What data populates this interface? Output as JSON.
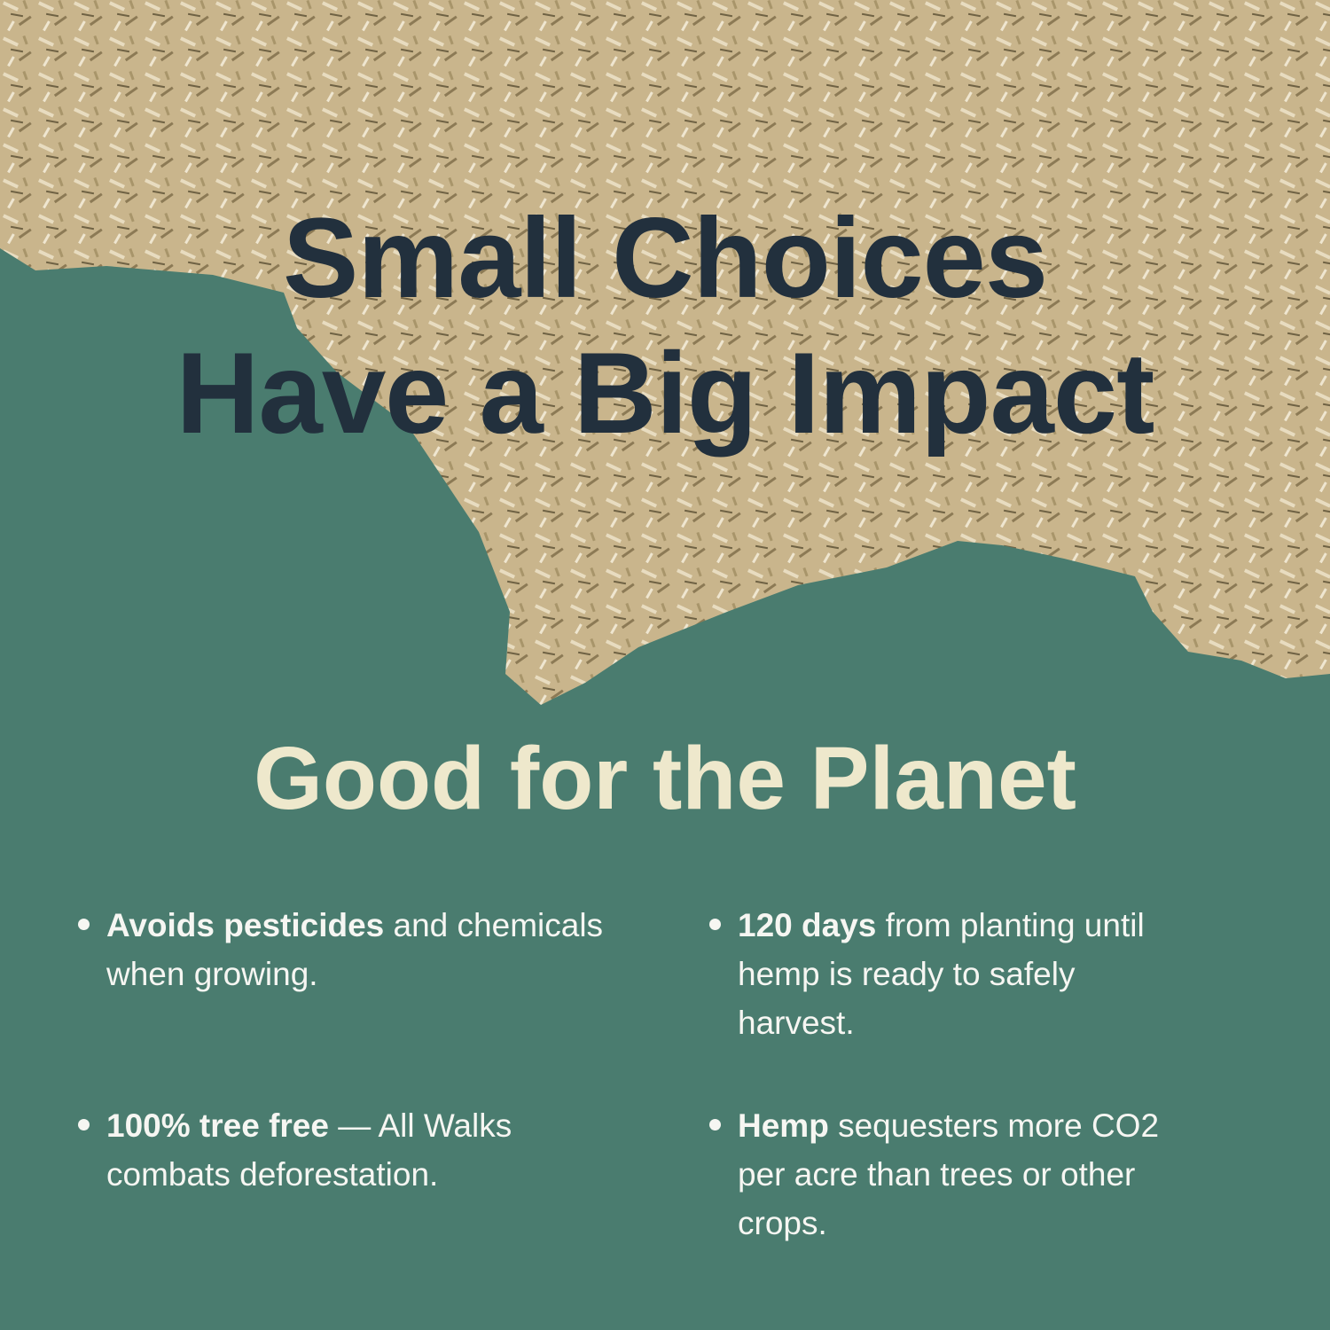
{
  "headline": {
    "line1": "Small Choices",
    "line2": "Have a Big Impact"
  },
  "subheading": "Good for the Planet",
  "bullets": [
    {
      "bold": "Avoids pesticides",
      "rest": " and chemicals when growing."
    },
    {
      "bold": "120 days",
      "rest": " from planting until hemp is ready to safely harvest."
    },
    {
      "bold": "100% tree free",
      "rest": " — All Walks combats deforestation."
    },
    {
      "bold": "Hemp",
      "rest": " sequesters more CO2 per acre than trees or other crops."
    }
  ],
  "colors": {
    "background": "#4a7c6f",
    "headline": "#22303d",
    "subheading": "#eee8cc",
    "body_text": "#f6f6f2",
    "straw": "#cbb891"
  }
}
